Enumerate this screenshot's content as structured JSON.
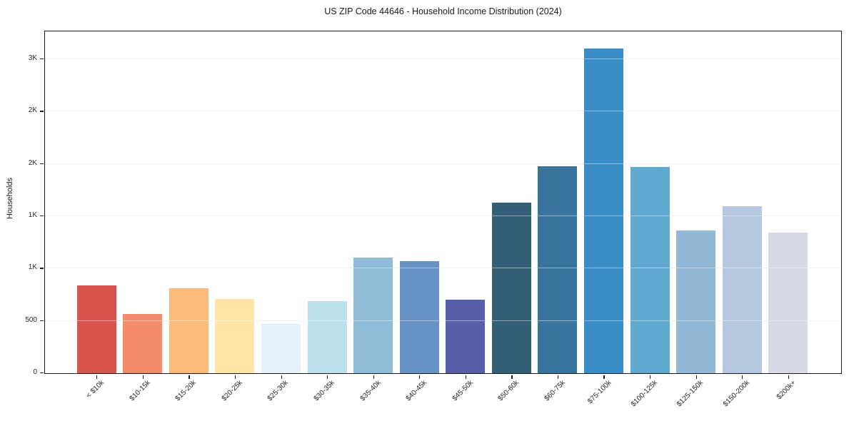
{
  "title": "US ZIP Code 44646 - Household Income Distribution (2024)",
  "chart_data": {
    "type": "bar",
    "title": "US ZIP Code 44646 - Household Income Distribution (2024)",
    "xlabel": "",
    "ylabel": "Households",
    "categories": [
      "< $10k",
      "$10-15k",
      "$15-20k",
      "$20-25k",
      "$25-30k",
      "$30-35k",
      "$35-40k",
      "$40-45k",
      "$45-50k",
      "$50-60k",
      "$60-75k",
      "$75-100k",
      "$100-125k",
      "$125-150k",
      "$150-200k",
      "$200k+"
    ],
    "values": [
      840,
      565,
      810,
      710,
      470,
      690,
      1105,
      1070,
      700,
      1625,
      1975,
      3095,
      1965,
      1360,
      1590,
      1340
    ],
    "bar_colors": [
      "#d6544d",
      "#f48b6a",
      "#fcba7d",
      "#fee5a7",
      "#e4f1f8",
      "#bce0ed",
      "#90bcda",
      "#6992c4",
      "#5a5fa9",
      "#345e76",
      "#38749c",
      "#388dc4",
      "#5fa8d0",
      "#93b7d7",
      "#b6c8e0",
      "#d7d9e7"
    ],
    "y_ticks": [
      {
        "value": 0,
        "label": "0"
      },
      {
        "value": 500,
        "label": "500"
      },
      {
        "value": 1000,
        "label": "1K"
      },
      {
        "value": 1500,
        "label": "1K"
      },
      {
        "value": 2000,
        "label": "2K"
      },
      {
        "value": 2500,
        "label": "2K"
      },
      {
        "value": 3000,
        "label": "3K"
      }
    ],
    "ylim": [
      0,
      3260
    ],
    "x_tick_rotation_deg": 45,
    "grid": "horizontal",
    "legend": "none",
    "spines": "full-box",
    "background_color": "#ffffff",
    "gridline_color": "#e7e7e7",
    "axis_color": "#1a1a1a"
  }
}
